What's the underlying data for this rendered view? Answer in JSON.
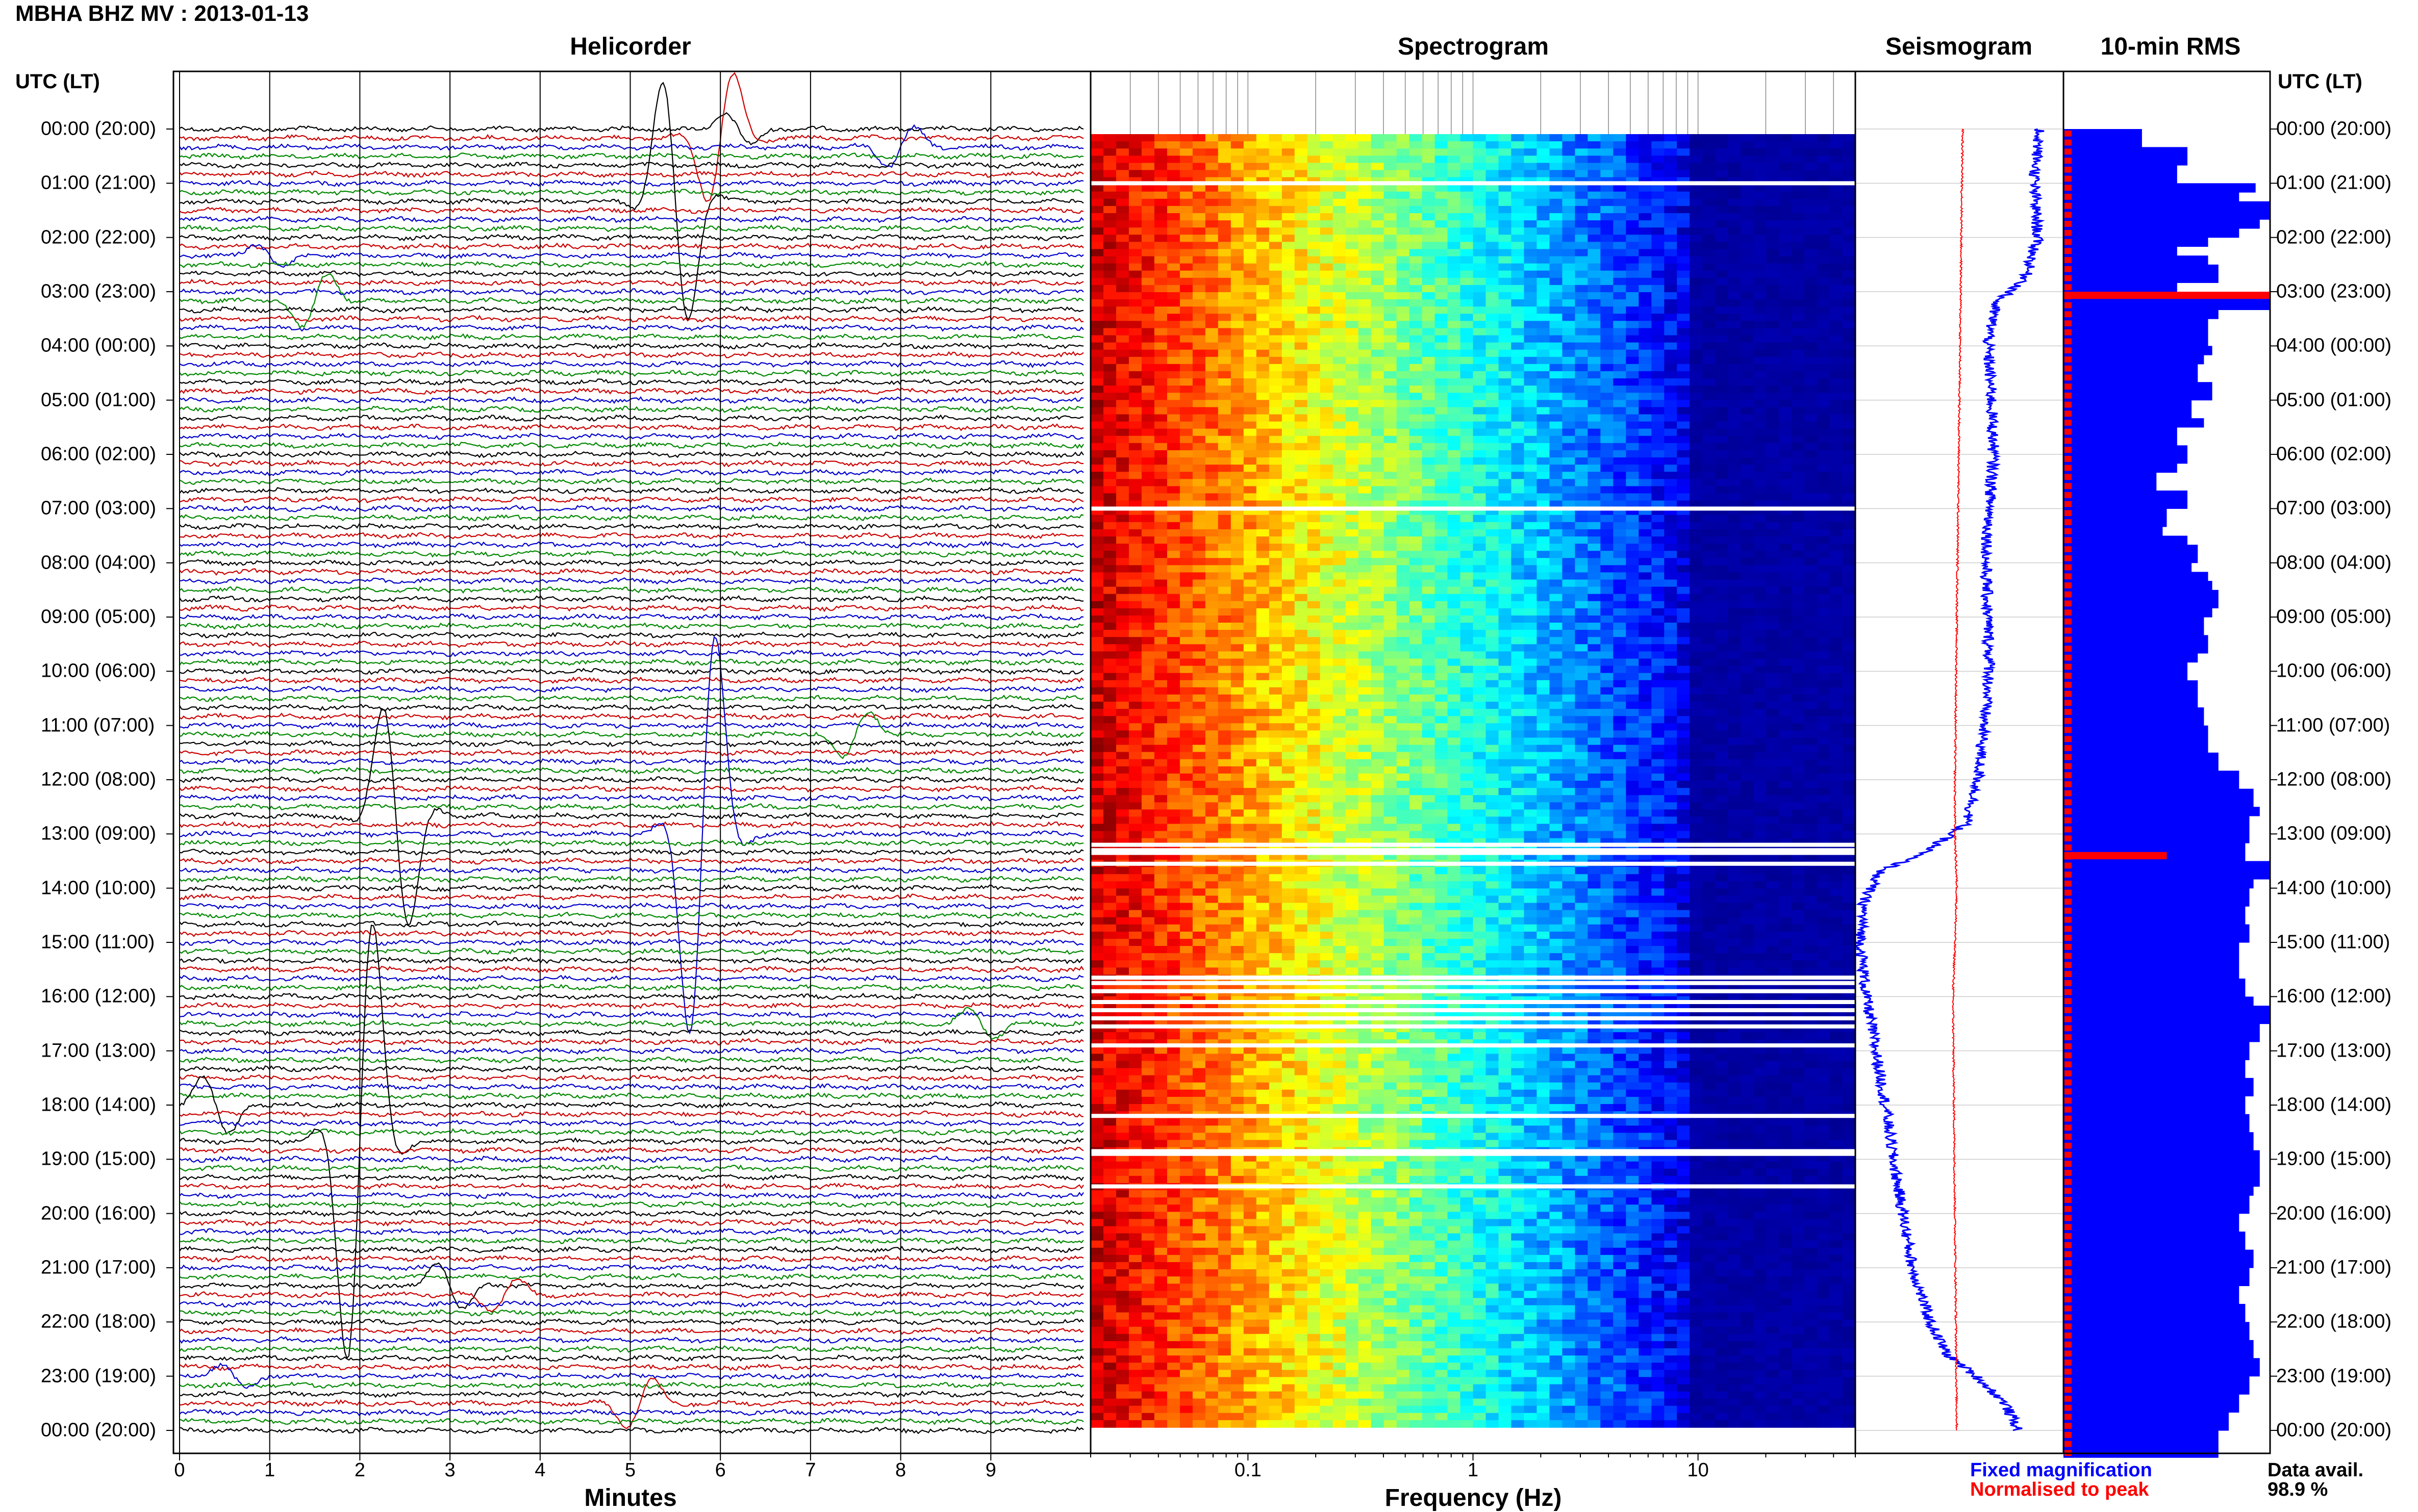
{
  "header": {
    "title": "MBHA BHZ MV : 2013-01-13"
  },
  "panels": {
    "helicorder": "Helicorder",
    "spectrogram": "Spectrogram",
    "seismogram": "Seismogram",
    "rms": "10-min RMS"
  },
  "axes": {
    "utc_label": "UTC (LT)",
    "minutes_label": "Minutes",
    "frequency_label": "Frequency (Hz)"
  },
  "legend": {
    "fixed": "Fixed magnification",
    "normalised": "Normalised to peak",
    "data_avail_label": "Data avail.",
    "data_avail_value": "98.9 %"
  },
  "colors": {
    "fixed": "#0000ff",
    "normalised": "#ff0000",
    "trace_colors": [
      "#000000",
      "#cc0000",
      "#0000cc",
      "#008800"
    ]
  },
  "chart_data": [
    {
      "type": "line",
      "panel": "Helicorder",
      "xlabel": "Minutes",
      "x_ticks": [
        "0",
        "1",
        "2",
        "3",
        "4",
        "5",
        "6",
        "7",
        "8",
        "9"
      ],
      "xlim": [
        0,
        10
      ],
      "y_ticks": [
        "00:00 (20:00)",
        "01:00 (21:00)",
        "02:00 (22:00)",
        "03:00 (23:00)",
        "04:00 (00:00)",
        "05:00 (01:00)",
        "06:00 (02:00)",
        "07:00 (03:00)",
        "08:00 (04:00)",
        "09:00 (05:00)",
        "10:00 (06:00)",
        "11:00 (07:00)",
        "12:00 (08:00)",
        "13:00 (09:00)",
        "14:00 (10:00)",
        "15:00 (11:00)",
        "16:00 (12:00)",
        "17:00 (13:00)",
        "18:00 (14:00)",
        "19:00 (15:00)",
        "20:00 (16:00)",
        "21:00 (17:00)",
        "22:00 (18:00)",
        "23:00 (19:00)",
        "00:00 (20:00)"
      ],
      "rows_per_hour": 6,
      "events": [
        {
          "row": 0,
          "minute": 6.2,
          "amp": 0.8
        },
        {
          "row": 1,
          "minute": 6.0,
          "amp": -3.2
        },
        {
          "row": 2,
          "minute": 8.0,
          "amp": -1.0
        },
        {
          "row": 8,
          "minute": 5.5,
          "amp": 6.0
        },
        {
          "row": 14,
          "minute": 1.0,
          "amp": 0.6
        },
        {
          "row": 19,
          "minute": 1.5,
          "amp": -1.4
        },
        {
          "row": 67,
          "minute": 7.5,
          "amp": -1.2
        },
        {
          "row": 76,
          "minute": 2.4,
          "amp": 5.5
        },
        {
          "row": 78,
          "minute": 5.8,
          "amp": -10.0
        },
        {
          "row": 99,
          "minute": 8.9,
          "amp": 0.7
        },
        {
          "row": 108,
          "minute": 0.4,
          "amp": 1.5
        },
        {
          "row": 112,
          "minute": 2.0,
          "amp": -11.0
        },
        {
          "row": 128,
          "minute": 3.0,
          "amp": 1.2
        },
        {
          "row": 129,
          "minute": 3.6,
          "amp": -0.8
        },
        {
          "row": 138,
          "minute": 0.6,
          "amp": 0.6
        },
        {
          "row": 141,
          "minute": 5.1,
          "amp": -1.2
        }
      ]
    },
    {
      "type": "heatmap",
      "panel": "Spectrogram",
      "xlabel": "Frequency (Hz)",
      "x_scale": "log",
      "xlim": [
        0.02,
        50
      ],
      "x_ticks": [
        "0.1",
        "1",
        "10"
      ],
      "gap_hours": [
        1.0,
        7.0,
        13.2,
        13.3,
        13.35,
        13.55,
        15.65,
        15.75,
        15.9,
        16.1,
        16.25,
        16.4,
        16.55,
        16.9,
        18.2,
        18.85,
        18.9,
        19.5
      ]
    },
    {
      "type": "line",
      "panel": "Seismogram",
      "series": [
        {
          "name": "Fixed magnification",
          "color": "#0000ff",
          "hours": [
            0,
            1,
            2,
            2.8,
            3.2,
            4,
            5,
            6,
            7,
            8,
            9,
            10,
            11,
            12,
            12.8,
            13.3,
            13.7,
            14.2,
            15,
            16,
            17,
            18,
            19,
            20,
            21,
            22,
            22.6,
            23,
            23.5,
            24
          ],
          "level": [
            0.93,
            0.9,
            0.92,
            0.85,
            0.7,
            0.66,
            0.68,
            0.69,
            0.67,
            0.65,
            0.66,
            0.67,
            0.64,
            0.61,
            0.55,
            0.35,
            0.1,
            0.02,
            0.0,
            0.03,
            0.08,
            0.13,
            0.17,
            0.22,
            0.27,
            0.36,
            0.45,
            0.6,
            0.75,
            0.82
          ]
        },
        {
          "name": "Normalised to peak",
          "color": "#ff0000",
          "hours": [
            0,
            3,
            6,
            9,
            12,
            13,
            14,
            16,
            20,
            24
          ],
          "level": [
            0.53,
            0.52,
            0.51,
            0.5,
            0.49,
            0.49,
            0.5,
            0.48,
            0.49,
            0.5
          ]
        }
      ]
    },
    {
      "type": "bar",
      "panel": "10-min RMS",
      "orientation": "horizontal",
      "rms_blue": [
        0.38,
        0.38,
        0.6,
        0.6,
        0.55,
        0.55,
        0.93,
        0.85,
        1.0,
        1.0,
        0.95,
        0.85,
        0.7,
        0.55,
        0.7,
        0.75,
        0.75,
        0.55,
        1.0,
        1.0,
        0.75,
        0.7,
        0.7,
        0.7,
        0.72,
        0.68,
        0.65,
        0.65,
        0.72,
        0.72,
        0.62,
        0.62,
        0.68,
        0.55,
        0.55,
        0.6,
        0.6,
        0.55,
        0.45,
        0.45,
        0.6,
        0.6,
        0.5,
        0.5,
        0.48,
        0.6,
        0.65,
        0.65,
        0.62,
        0.7,
        0.72,
        0.75,
        0.75,
        0.72,
        0.68,
        0.68,
        0.7,
        0.7,
        0.65,
        0.6,
        0.6,
        0.65,
        0.65,
        0.65,
        0.68,
        0.68,
        0.7,
        0.7,
        0.7,
        0.75,
        0.75,
        0.85,
        0.85,
        0.92,
        0.92,
        0.95,
        0.9,
        0.9,
        0.9,
        0.88,
        0.88,
        1.0,
        1.0,
        0.92,
        0.9,
        0.9,
        0.88,
        0.88,
        0.9,
        0.9,
        0.85,
        0.85,
        0.85,
        0.85,
        0.88,
        0.88,
        0.92,
        1.0,
        1.0,
        0.95,
        0.95,
        0.9,
        0.9,
        0.88,
        0.88,
        0.92,
        0.92,
        0.88,
        0.88,
        0.9,
        0.9,
        0.92,
        0.92,
        0.95,
        0.95,
        0.95,
        0.95,
        0.92,
        0.9,
        0.9,
        0.85,
        0.85,
        0.88,
        0.88,
        0.92,
        0.92,
        0.9,
        0.9,
        0.85,
        0.85,
        0.88,
        0.88,
        0.9,
        0.9,
        0.92,
        0.92,
        0.95,
        0.95,
        0.9,
        0.9,
        0.85,
        0.85,
        0.8,
        0.8,
        0.75,
        0.75,
        0.75
      ],
      "red_events": [
        {
          "row": 18,
          "value": 1.0
        },
        {
          "row": 80,
          "value": 0.5
        }
      ]
    }
  ]
}
